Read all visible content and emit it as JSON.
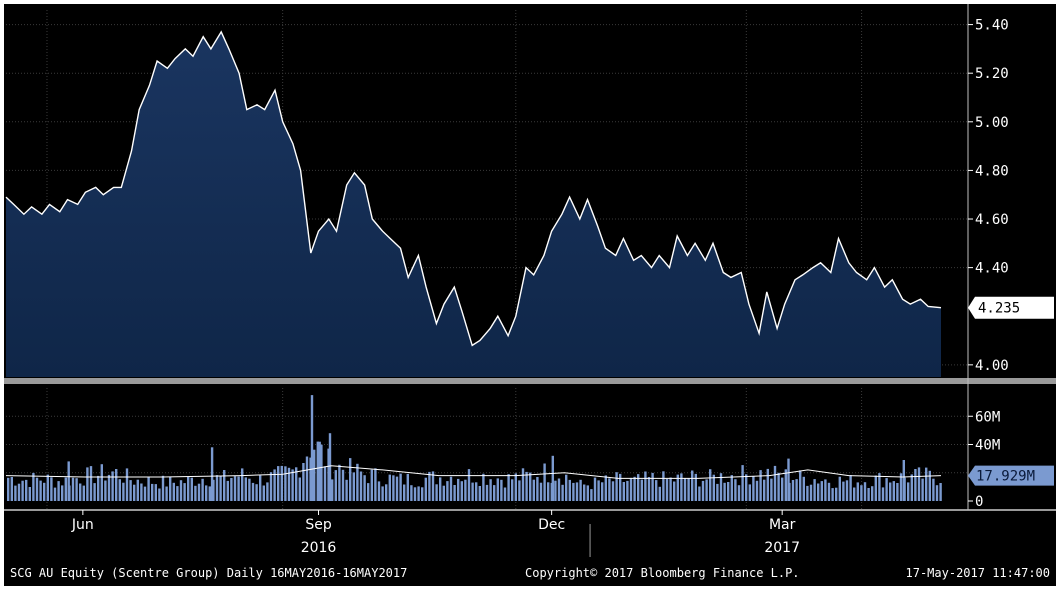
{
  "chart_data": [
    {
      "type": "area",
      "panel": "price",
      "ylim": [
        3.95,
        5.46
      ],
      "yticks": [
        "5.40",
        "5.20",
        "5.00",
        "4.80",
        "4.60",
        "4.40",
        "4.00"
      ],
      "last_value_label": "4.235",
      "last_value": 4.235,
      "colors": {
        "line": "#ffffff",
        "fill": "#0f2648",
        "label_bg": "#ffffff",
        "label_text": "#000000"
      },
      "x_start": "2016-05-16",
      "x_end": "2017-05-16",
      "series": [
        {
          "values": [
            [
              "2016-05-16",
              4.69
            ],
            [
              "2016-05-19",
              4.66
            ],
            [
              "2016-05-23",
              4.62
            ],
            [
              "2016-05-26",
              4.65
            ],
            [
              "2016-05-30",
              4.62
            ],
            [
              "2016-06-02",
              4.66
            ],
            [
              "2016-06-06",
              4.63
            ],
            [
              "2016-06-09",
              4.68
            ],
            [
              "2016-06-13",
              4.66
            ],
            [
              "2016-06-16",
              4.71
            ],
            [
              "2016-06-20",
              4.73
            ],
            [
              "2016-06-23",
              4.7
            ],
            [
              "2016-06-27",
              4.73
            ],
            [
              "2016-06-30",
              4.73
            ],
            [
              "2016-07-04",
              4.88
            ],
            [
              "2016-07-07",
              5.05
            ],
            [
              "2016-07-11",
              5.15
            ],
            [
              "2016-07-14",
              5.25
            ],
            [
              "2016-07-18",
              5.22
            ],
            [
              "2016-07-21",
              5.26
            ],
            [
              "2016-07-25",
              5.3
            ],
            [
              "2016-07-28",
              5.27
            ],
            [
              "2016-08-01",
              5.35
            ],
            [
              "2016-08-04",
              5.3
            ],
            [
              "2016-08-08",
              5.37
            ],
            [
              "2016-08-11",
              5.3
            ],
            [
              "2016-08-15",
              5.2
            ],
            [
              "2016-08-18",
              5.05
            ],
            [
              "2016-08-22",
              5.07
            ],
            [
              "2016-08-25",
              5.05
            ],
            [
              "2016-08-29",
              5.13
            ],
            [
              "2016-09-01",
              5.0
            ],
            [
              "2016-09-05",
              4.91
            ],
            [
              "2016-09-08",
              4.8
            ],
            [
              "2016-09-12",
              4.46
            ],
            [
              "2016-09-15",
              4.55
            ],
            [
              "2016-09-19",
              4.6
            ],
            [
              "2016-09-22",
              4.55
            ],
            [
              "2016-09-26",
              4.74
            ],
            [
              "2016-09-29",
              4.79
            ],
            [
              "2016-10-03",
              4.74
            ],
            [
              "2016-10-06",
              4.6
            ],
            [
              "2016-10-10",
              4.55
            ],
            [
              "2016-10-13",
              4.52
            ],
            [
              "2016-10-17",
              4.48
            ],
            [
              "2016-10-20",
              4.36
            ],
            [
              "2016-10-24",
              4.45
            ],
            [
              "2016-10-27",
              4.32
            ],
            [
              "2016-10-31",
              4.17
            ],
            [
              "2016-11-03",
              4.25
            ],
            [
              "2016-11-07",
              4.32
            ],
            [
              "2016-11-10",
              4.22
            ],
            [
              "2016-11-14",
              4.08
            ],
            [
              "2016-11-17",
              4.1
            ],
            [
              "2016-11-21",
              4.15
            ],
            [
              "2016-11-24",
              4.2
            ],
            [
              "2016-11-28",
              4.12
            ],
            [
              "2016-12-01",
              4.2
            ],
            [
              "2016-12-05",
              4.4
            ],
            [
              "2016-12-08",
              4.37
            ],
            [
              "2016-12-12",
              4.45
            ],
            [
              "2016-12-15",
              4.55
            ],
            [
              "2016-12-19",
              4.62
            ],
            [
              "2016-12-22",
              4.69
            ],
            [
              "2016-12-26",
              4.6
            ],
            [
              "2016-12-29",
              4.68
            ],
            [
              "2017-01-02",
              4.57
            ],
            [
              "2017-01-05",
              4.48
            ],
            [
              "2017-01-09",
              4.45
            ],
            [
              "2017-01-12",
              4.52
            ],
            [
              "2017-01-16",
              4.43
            ],
            [
              "2017-01-19",
              4.45
            ],
            [
              "2017-01-23",
              4.4
            ],
            [
              "2017-01-26",
              4.45
            ],
            [
              "2017-01-30",
              4.4
            ],
            [
              "2017-02-02",
              4.53
            ],
            [
              "2017-02-06",
              4.45
            ],
            [
              "2017-02-09",
              4.5
            ],
            [
              "2017-02-13",
              4.43
            ],
            [
              "2017-02-16",
              4.5
            ],
            [
              "2017-02-20",
              4.38
            ],
            [
              "2017-02-23",
              4.36
            ],
            [
              "2017-02-27",
              4.38
            ],
            [
              "2017-03-02",
              4.25
            ],
            [
              "2017-03-06",
              4.13
            ],
            [
              "2017-03-09",
              4.3
            ],
            [
              "2017-03-13",
              4.15
            ],
            [
              "2017-03-16",
              4.25
            ],
            [
              "2017-03-20",
              4.35
            ],
            [
              "2017-03-23",
              4.37
            ],
            [
              "2017-03-27",
              4.4
            ],
            [
              "2017-03-30",
              4.42
            ],
            [
              "2017-04-03",
              4.38
            ],
            [
              "2017-04-06",
              4.52
            ],
            [
              "2017-04-10",
              4.42
            ],
            [
              "2017-04-13",
              4.38
            ],
            [
              "2017-04-17",
              4.35
            ],
            [
              "2017-04-20",
              4.4
            ],
            [
              "2017-04-24",
              4.32
            ],
            [
              "2017-04-27",
              4.35
            ],
            [
              "2017-05-01",
              4.27
            ],
            [
              "2017-05-04",
              4.25
            ],
            [
              "2017-05-08",
              4.27
            ],
            [
              "2017-05-11",
              4.24
            ],
            [
              "2017-05-16",
              4.235
            ]
          ]
        }
      ]
    },
    {
      "type": "bar",
      "panel": "volume",
      "ylim": [
        0,
        80
      ],
      "yticks": [
        "60M",
        "40M",
        "0"
      ],
      "last_value_label": "17.929M",
      "last_value": 17.929,
      "colors": {
        "bar": "#7b9ad0",
        "ma_line": "#ffffff",
        "label_bg": "#7b9ad0",
        "label_text": "#0a1a3a"
      },
      "series": [
        {
          "values": [
            [
              "2016-05-16",
              18
            ],
            [
              "2016-05-23",
              16
            ],
            [
              "2016-05-30",
              17
            ],
            [
              "2016-06-06",
              15
            ],
            [
              "2016-06-13",
              18
            ],
            [
              "2016-06-20",
              20
            ],
            [
              "2016-06-27",
              22
            ],
            [
              "2016-07-04",
              16
            ],
            [
              "2016-07-11",
              15
            ],
            [
              "2016-07-18",
              14
            ],
            [
              "2016-07-25",
              15
            ],
            [
              "2016-08-01",
              18
            ],
            [
              "2016-08-08",
              17
            ],
            [
              "2016-08-15",
              20
            ],
            [
              "2016-08-22",
              16
            ],
            [
              "2016-08-29",
              19
            ],
            [
              "2016-09-05",
              22
            ],
            [
              "2016-09-12",
              45
            ],
            [
              "2016-09-19",
              28
            ],
            [
              "2016-09-26",
              24
            ],
            [
              "2016-10-03",
              20
            ],
            [
              "2016-10-10",
              18
            ],
            [
              "2016-10-17",
              16
            ],
            [
              "2016-10-24",
              17
            ],
            [
              "2016-10-31",
              18
            ],
            [
              "2016-11-07",
              19
            ],
            [
              "2016-11-14",
              20
            ],
            [
              "2016-11-21",
              18
            ],
            [
              "2016-11-28",
              17
            ],
            [
              "2016-12-05",
              19
            ],
            [
              "2016-12-12",
              22
            ],
            [
              "2016-12-19",
              20
            ],
            [
              "2016-12-26",
              12
            ],
            [
              "2017-01-02",
              14
            ],
            [
              "2017-01-09",
              16
            ],
            [
              "2017-01-16",
              15
            ],
            [
              "2017-01-23",
              17
            ],
            [
              "2017-01-30",
              16
            ],
            [
              "2017-02-06",
              18
            ],
            [
              "2017-02-13",
              17
            ],
            [
              "2017-02-20",
              19
            ],
            [
              "2017-02-27",
              20
            ],
            [
              "2017-03-06",
              21
            ],
            [
              "2017-03-13",
              20
            ],
            [
              "2017-03-20",
              18
            ],
            [
              "2017-03-27",
              17
            ],
            [
              "2017-04-03",
              16
            ],
            [
              "2017-04-10",
              15
            ],
            [
              "2017-04-17",
              16
            ],
            [
              "2017-04-24",
              17
            ],
            [
              "2017-05-01",
              18
            ],
            [
              "2017-05-08",
              19
            ],
            [
              "2017-05-16",
              17.929
            ]
          ],
          "spikes": [
            [
              "2016-09-12",
              75
            ],
            [
              "2016-09-15",
              42
            ],
            [
              "2016-09-19",
              48
            ],
            [
              "2016-08-04",
              38
            ],
            [
              "2016-06-09",
              28
            ],
            [
              "2016-12-15",
              32
            ],
            [
              "2017-03-17",
              30
            ],
            [
              "2017-05-01",
              29
            ]
          ]
        }
      ],
      "moving_average": [
        [
          "2016-05-16",
          18
        ],
        [
          "2016-06-16",
          17
        ],
        [
          "2016-07-16",
          17
        ],
        [
          "2016-08-16",
          18
        ],
        [
          "2016-09-01",
          19
        ],
        [
          "2016-09-20",
          25
        ],
        [
          "2016-10-10",
          22
        ],
        [
          "2016-11-01",
          18
        ],
        [
          "2016-12-01",
          18
        ],
        [
          "2016-12-20",
          20
        ],
        [
          "2017-01-10",
          16
        ],
        [
          "2017-02-10",
          16
        ],
        [
          "2017-03-10",
          18
        ],
        [
          "2017-03-25",
          22
        ],
        [
          "2017-04-10",
          18
        ],
        [
          "2017-05-01",
          17
        ],
        [
          "2017-05-16",
          18
        ]
      ]
    }
  ],
  "x_axis": {
    "months": [
      {
        "label": "Jun",
        "date": "2016-06-15"
      },
      {
        "label": "Sep",
        "date": "2016-09-15"
      },
      {
        "label": "Dec",
        "date": "2016-12-15"
      },
      {
        "label": "Mar",
        "date": "2017-03-15"
      }
    ],
    "years": [
      {
        "label": "2016",
        "date": "2016-09-15"
      },
      {
        "label": "2017",
        "date": "2017-03-15"
      }
    ],
    "year_divider": "2016-12-30",
    "gridlines": [
      "2016-06-01",
      "2016-09-01",
      "2016-12-01",
      "2017-03-01",
      "2017-04-15"
    ]
  },
  "footer": {
    "security": "SCG AU Equity (Scentre Group)  Daily 16MAY2016-16MAY2017",
    "copyright": "Copyright© 2017 Bloomberg Finance L.P.",
    "timestamp": "17-May-2017 11:47:00"
  }
}
